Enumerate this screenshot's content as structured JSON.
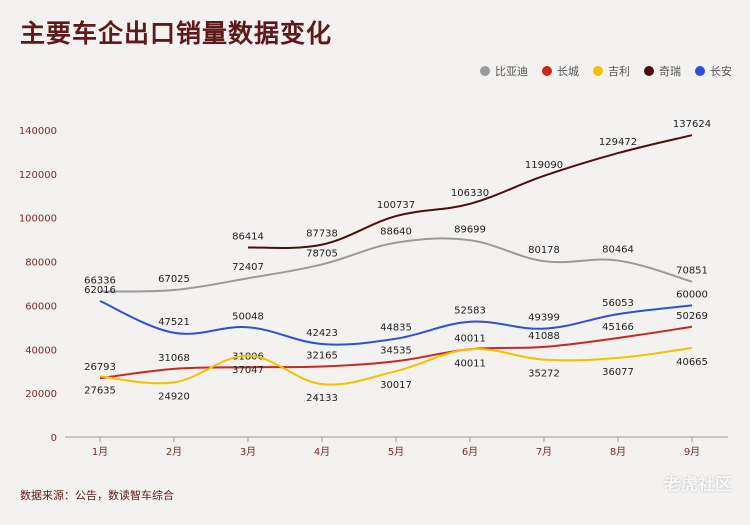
{
  "title": "主要车企出口销量数据变化",
  "source": "数据来源：公告，数读智车综合",
  "watermark": "老虎社区",
  "chart_data": {
    "type": "line",
    "categories": [
      "1月",
      "2月",
      "3月",
      "4月",
      "5月",
      "6月",
      "7月",
      "8月",
      "9月"
    ],
    "ylim": [
      0,
      140000
    ],
    "yticks": [
      0,
      20000,
      40000,
      60000,
      80000,
      100000,
      120000,
      140000
    ],
    "grid": false,
    "legend_position": "top-right",
    "series": [
      {
        "name": "比亚迪",
        "color": "#9a9a9a",
        "values": [
          66336,
          67025,
          72407,
          78705,
          88640,
          89699,
          80178,
          80464,
          70851
        ]
      },
      {
        "name": "长城",
        "color": "#c8281d",
        "values": [
          26793,
          31068,
          31806,
          32165,
          34535,
          40011,
          41088,
          45166,
          50269
        ]
      },
      {
        "name": "吉利",
        "color": "#f2c200",
        "values": [
          27635,
          24920,
          37047,
          24133,
          30017,
          40011,
          35272,
          36077,
          40665
        ]
      },
      {
        "name": "奇瑞",
        "color": "#4f0d0d",
        "values": [
          null,
          null,
          86414,
          87738,
          100737,
          106330,
          119090,
          129472,
          137624
        ]
      },
      {
        "name": "长安",
        "color": "#2f4fd6",
        "values": [
          62016,
          47521,
          50048,
          42423,
          44835,
          52583,
          49399,
          56053,
          60000
        ]
      }
    ]
  }
}
